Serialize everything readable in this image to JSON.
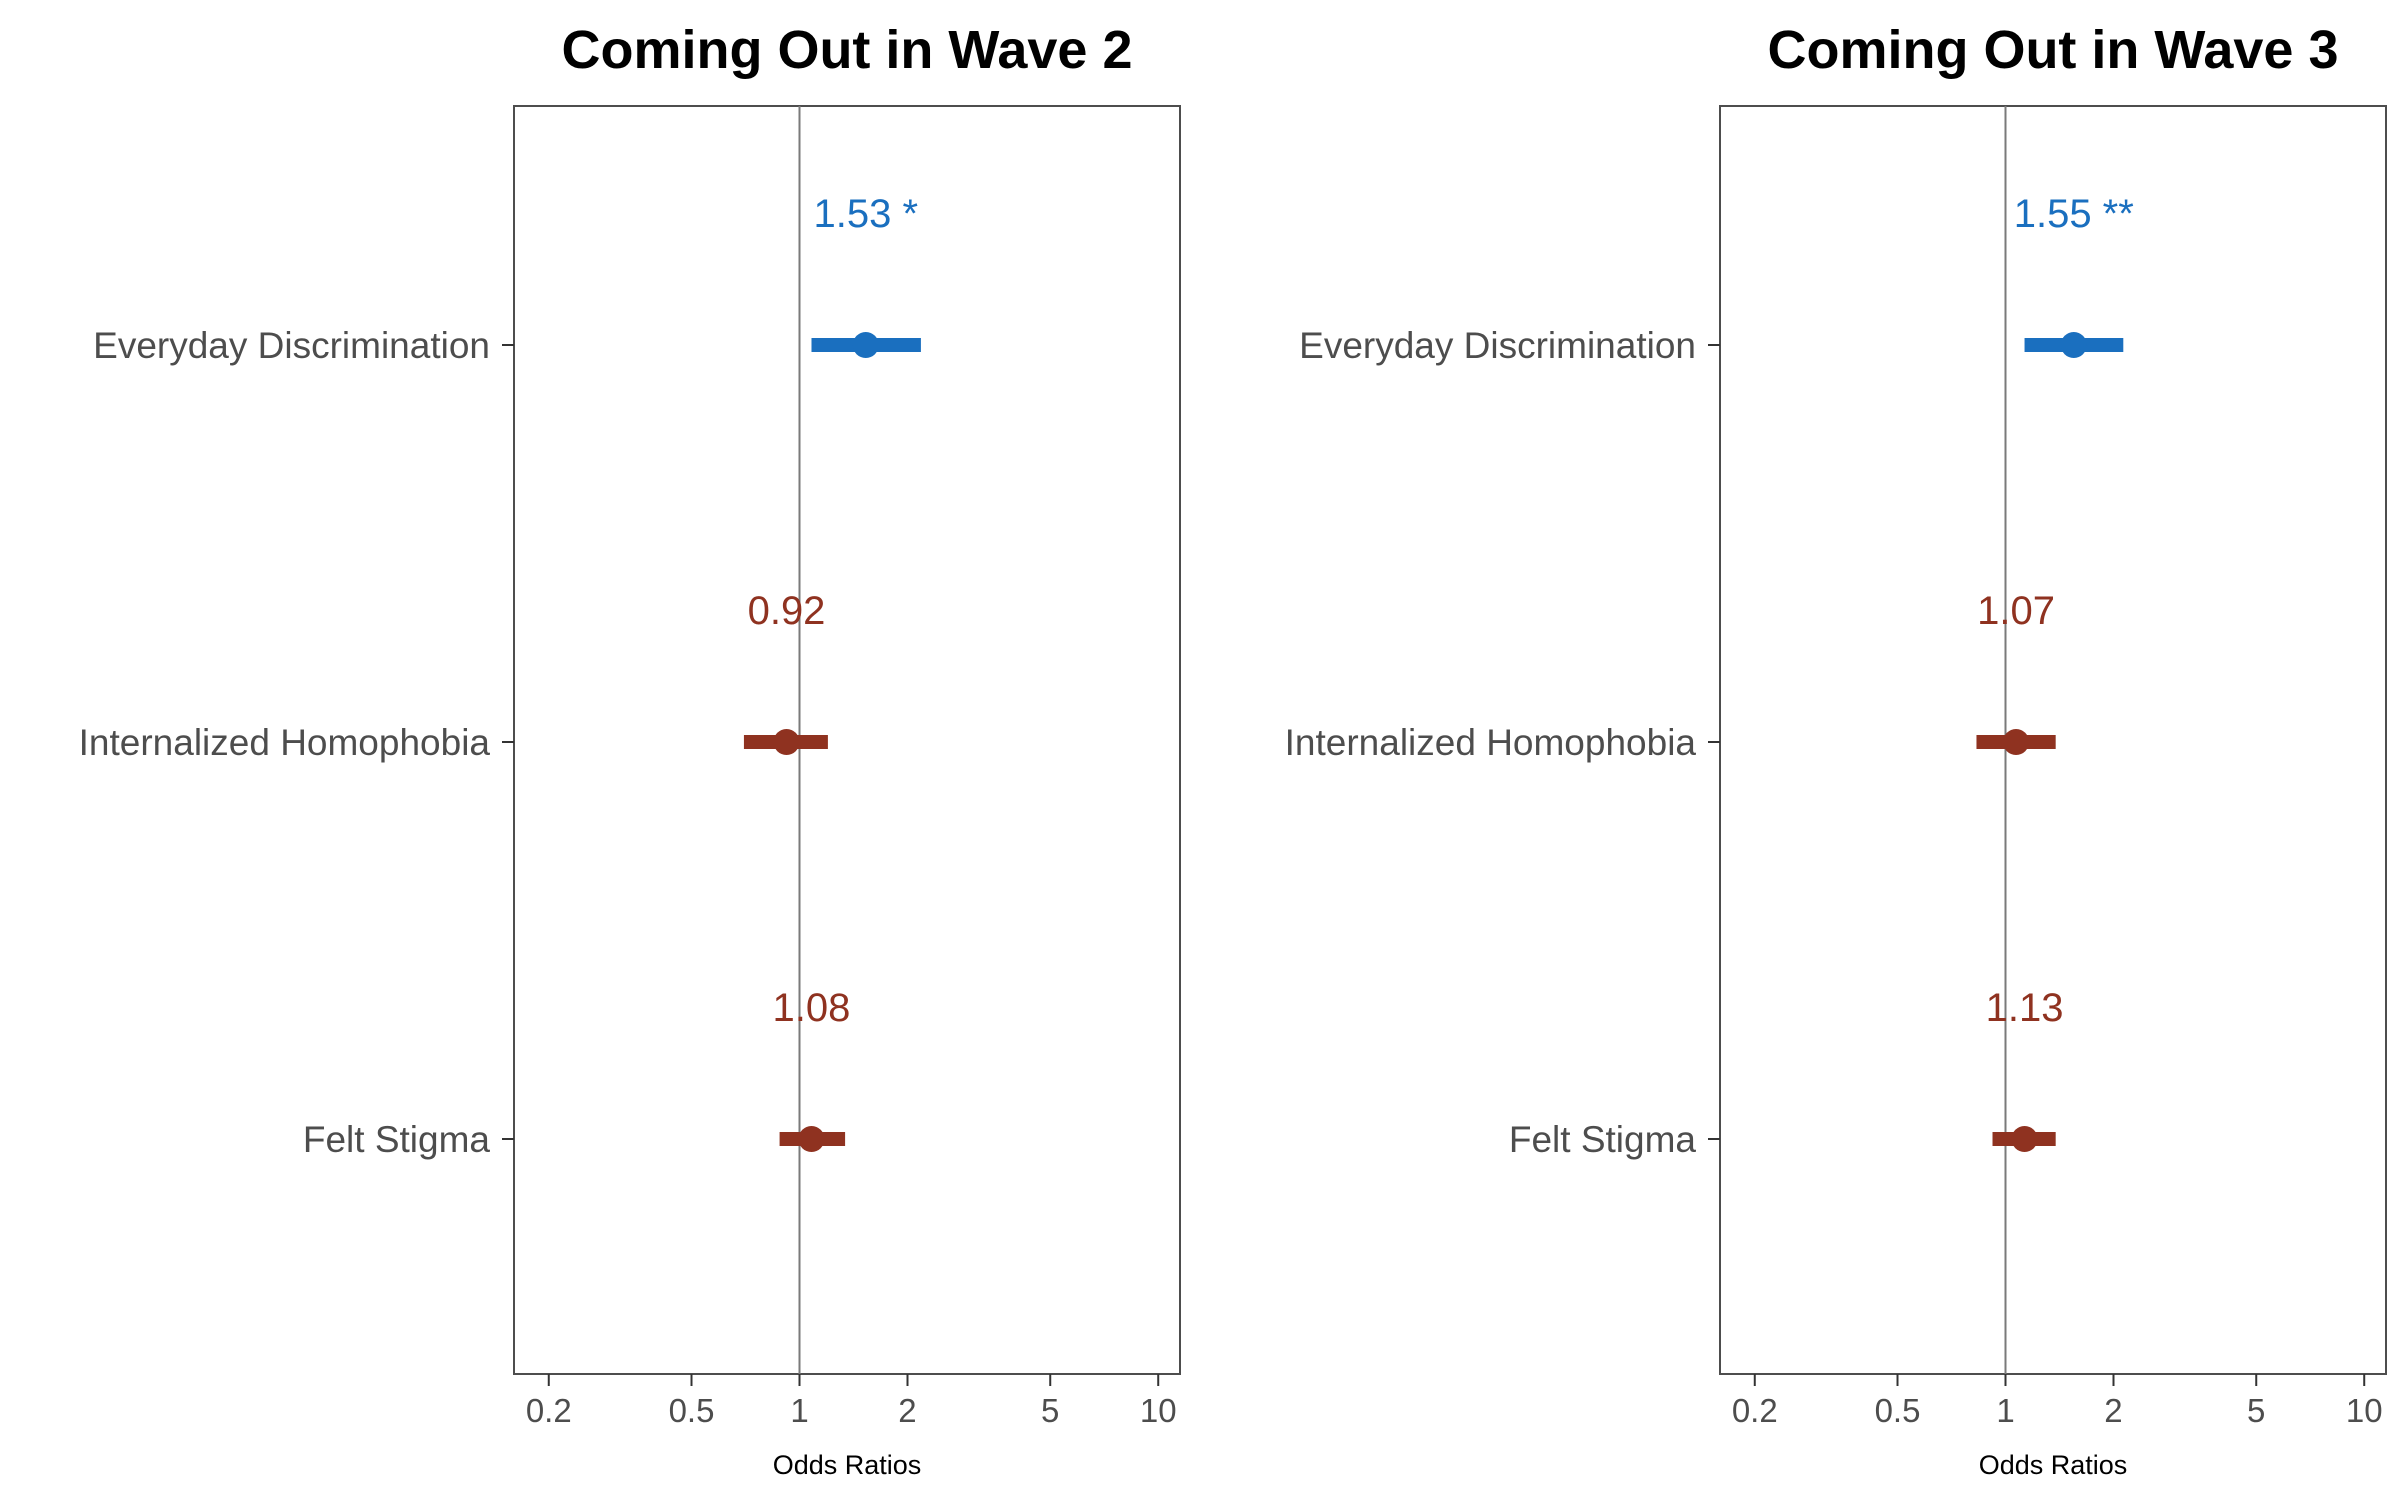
{
  "chart_data": [
    {
      "type": "forest",
      "title": "Coming Out in Wave 2",
      "xlabel": "Odds Ratios",
      "x_scale": "log",
      "xlim": [
        0.16,
        11.5
      ],
      "x_ticks": [
        0.2,
        0.5,
        1,
        2,
        5,
        10
      ],
      "x_tick_labels": [
        "0.2",
        "0.5",
        "1",
        "2",
        "5",
        "10"
      ],
      "reference_line": 1,
      "grid": false,
      "legend": "none",
      "categories": [
        "Everyday Discrimination",
        "Internalized Homophobia",
        "Felt Stigma"
      ],
      "estimates": [
        {
          "category": "Everyday Discrimination",
          "or": 1.53,
          "ci_low": 1.08,
          "ci_high": 2.18,
          "label": "1.53 *",
          "color": "#1a6fbf"
        },
        {
          "category": "Internalized Homophobia",
          "or": 0.92,
          "ci_low": 0.7,
          "ci_high": 1.2,
          "label": "0.92",
          "color": "#8f3220"
        },
        {
          "category": "Felt Stigma",
          "or": 1.08,
          "ci_low": 0.88,
          "ci_high": 1.34,
          "label": "1.08",
          "color": "#8f3220"
        }
      ]
    },
    {
      "type": "forest",
      "title": "Coming Out in Wave 3",
      "xlabel": "Odds Ratios",
      "x_scale": "log",
      "xlim": [
        0.16,
        11.5
      ],
      "x_ticks": [
        0.2,
        0.5,
        1,
        2,
        5,
        10
      ],
      "x_tick_labels": [
        "0.2",
        "0.5",
        "1",
        "2",
        "5",
        "10"
      ],
      "reference_line": 1,
      "grid": false,
      "legend": "none",
      "categories": [
        "Everyday Discrimination",
        "Internalized Homophobia",
        "Felt Stigma"
      ],
      "estimates": [
        {
          "category": "Everyday Discrimination",
          "or": 1.55,
          "ci_low": 1.13,
          "ci_high": 2.13,
          "label": "1.55 **",
          "color": "#1a6fbf"
        },
        {
          "category": "Internalized Homophobia",
          "or": 1.07,
          "ci_low": 0.83,
          "ci_high": 1.38,
          "label": "1.07",
          "color": "#8f3220"
        },
        {
          "category": "Felt Stigma",
          "or": 1.13,
          "ci_low": 0.92,
          "ci_high": 1.38,
          "label": "1.13",
          "color": "#8f3220"
        }
      ]
    }
  ]
}
